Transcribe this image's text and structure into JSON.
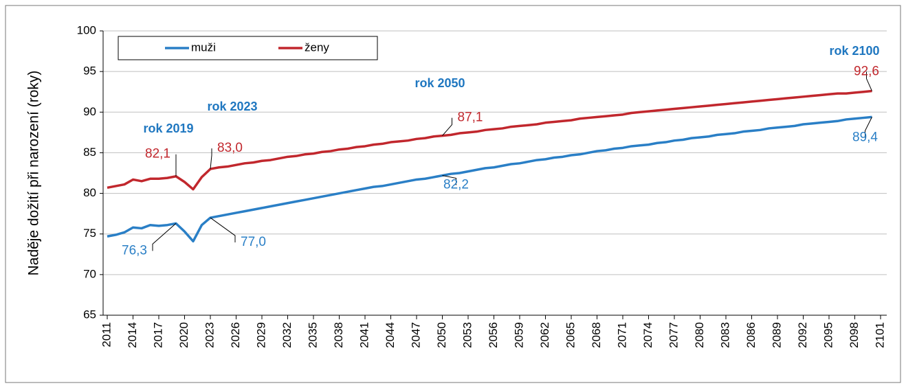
{
  "chart_data": {
    "type": "line",
    "ylabel": "Naděje dožití při narození (roky)",
    "x": [
      2011,
      2012,
      2013,
      2014,
      2015,
      2016,
      2017,
      2018,
      2019,
      2020,
      2021,
      2022,
      2023,
      2024,
      2025,
      2026,
      2027,
      2028,
      2029,
      2030,
      2031,
      2032,
      2033,
      2034,
      2035,
      2036,
      2037,
      2038,
      2039,
      2040,
      2041,
      2042,
      2043,
      2044,
      2045,
      2046,
      2047,
      2048,
      2049,
      2050,
      2051,
      2052,
      2053,
      2054,
      2055,
      2056,
      2057,
      2058,
      2059,
      2060,
      2061,
      2062,
      2063,
      2064,
      2065,
      2066,
      2067,
      2068,
      2069,
      2070,
      2071,
      2072,
      2073,
      2074,
      2075,
      2076,
      2077,
      2078,
      2079,
      2080,
      2081,
      2082,
      2083,
      2084,
      2085,
      2086,
      2087,
      2088,
      2089,
      2090,
      2091,
      2092,
      2093,
      2094,
      2095,
      2096,
      2097,
      2098,
      2099,
      2100
    ],
    "series": [
      {
        "name": "muži",
        "color": "#2a7fc6",
        "values": [
          74.7,
          74.9,
          75.2,
          75.8,
          75.7,
          76.1,
          76.0,
          76.1,
          76.3,
          75.3,
          74.1,
          76.1,
          77.0,
          77.2,
          77.4,
          77.6,
          77.8,
          78.0,
          78.2,
          78.4,
          78.6,
          78.8,
          79.0,
          79.2,
          79.4,
          79.6,
          79.8,
          80.0,
          80.2,
          80.4,
          80.6,
          80.8,
          80.9,
          81.1,
          81.3,
          81.5,
          81.7,
          81.8,
          82.0,
          82.2,
          82.4,
          82.5,
          82.7,
          82.9,
          83.1,
          83.2,
          83.4,
          83.6,
          83.7,
          83.9,
          84.1,
          84.2,
          84.4,
          84.5,
          84.7,
          84.8,
          85.0,
          85.2,
          85.3,
          85.5,
          85.6,
          85.8,
          85.9,
          86.0,
          86.2,
          86.3,
          86.5,
          86.6,
          86.8,
          86.9,
          87.0,
          87.2,
          87.3,
          87.4,
          87.6,
          87.7,
          87.8,
          88.0,
          88.1,
          88.2,
          88.3,
          88.5,
          88.6,
          88.7,
          88.8,
          88.9,
          89.1,
          89.2,
          89.3,
          89.4
        ],
        "value_labels": [
          null,
          null,
          null,
          null,
          null,
          null,
          null,
          null,
          "76,3",
          null,
          null,
          null,
          "77,0",
          null,
          null,
          null,
          null,
          null,
          null,
          null,
          null,
          null,
          null,
          null,
          null,
          null,
          null,
          null,
          null,
          null,
          null,
          null,
          null,
          null,
          null,
          null,
          null,
          null,
          null,
          "82,2",
          null,
          null,
          null,
          null,
          null,
          null,
          null,
          null,
          null,
          null,
          null,
          null,
          null,
          null,
          null,
          null,
          null,
          null,
          null,
          null,
          null,
          null,
          null,
          null,
          null,
          null,
          null,
          null,
          null,
          null,
          null,
          null,
          null,
          null,
          null,
          null,
          null,
          null,
          null,
          null,
          null,
          null,
          null,
          null,
          null,
          null,
          null,
          null,
          null,
          "89,4"
        ]
      },
      {
        "name": "ženy",
        "color": "#c1272d",
        "values": [
          80.7,
          80.9,
          81.1,
          81.7,
          81.5,
          81.8,
          81.8,
          81.9,
          82.1,
          81.4,
          80.5,
          82.0,
          83.0,
          83.2,
          83.3,
          83.5,
          83.7,
          83.8,
          84.0,
          84.1,
          84.3,
          84.5,
          84.6,
          84.8,
          84.9,
          85.1,
          85.2,
          85.4,
          85.5,
          85.7,
          85.8,
          86.0,
          86.1,
          86.3,
          86.4,
          86.5,
          86.7,
          86.8,
          87.0,
          87.1,
          87.2,
          87.4,
          87.5,
          87.6,
          87.8,
          87.9,
          88.0,
          88.2,
          88.3,
          88.4,
          88.5,
          88.7,
          88.8,
          88.9,
          89.0,
          89.2,
          89.3,
          89.4,
          89.5,
          89.6,
          89.7,
          89.9,
          90.0,
          90.1,
          90.2,
          90.3,
          90.4,
          90.5,
          90.6,
          90.7,
          90.8,
          90.9,
          91.0,
          91.1,
          91.2,
          91.3,
          91.4,
          91.5,
          91.6,
          91.7,
          91.8,
          91.9,
          92.0,
          92.1,
          92.2,
          92.3,
          92.3,
          92.4,
          92.5,
          92.6
        ],
        "value_labels": [
          null,
          null,
          null,
          null,
          null,
          null,
          null,
          null,
          "82,1",
          null,
          null,
          null,
          "83,0",
          null,
          null,
          null,
          null,
          null,
          null,
          null,
          null,
          null,
          null,
          null,
          null,
          null,
          null,
          null,
          null,
          null,
          null,
          null,
          null,
          null,
          null,
          null,
          null,
          null,
          null,
          "87,1",
          null,
          null,
          null,
          null,
          null,
          null,
          null,
          null,
          null,
          null,
          null,
          null,
          null,
          null,
          null,
          null,
          null,
          null,
          null,
          null,
          null,
          null,
          null,
          null,
          null,
          null,
          null,
          null,
          null,
          null,
          null,
          null,
          null,
          null,
          null,
          null,
          null,
          null,
          null,
          null,
          null,
          null,
          null,
          null,
          null,
          null,
          null,
          null,
          null,
          "92,6"
        ]
      }
    ],
    "annotations": [
      "rok 2019",
      "rok 2023",
      "rok 2050",
      "rok 2100"
    ],
    "xlim": [
      2011,
      2101
    ],
    "xticks": [
      2011,
      2014,
      2017,
      2020,
      2023,
      2026,
      2029,
      2032,
      2035,
      2038,
      2041,
      2044,
      2047,
      2050,
      2053,
      2056,
      2059,
      2062,
      2065,
      2068,
      2071,
      2074,
      2077,
      2080,
      2083,
      2086,
      2089,
      2092,
      2095,
      2098,
      2101
    ],
    "ylim": [
      65,
      100
    ],
    "yticks": [
      65,
      70,
      75,
      80,
      85,
      90,
      95,
      100
    ],
    "grid": true,
    "legend": "top-left"
  }
}
